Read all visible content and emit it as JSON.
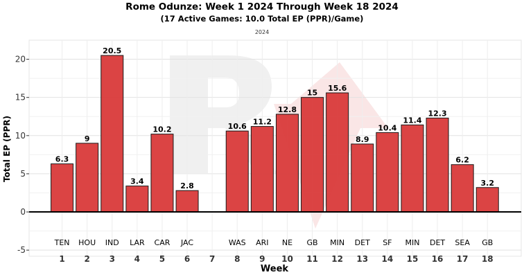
{
  "chart_data": {
    "type": "bar",
    "title": "Rome Odunze: Week 1 2024 Through Week 18 2024",
    "subtitle": "(17 Active Games: 10.0 Total EP (PPR)/Game)",
    "facet_label": "2024",
    "xlabel": "Week",
    "ylabel": "Total EP (PPR)",
    "ylim": [
      -5,
      22
    ],
    "yticks": [
      -5,
      0,
      5,
      10,
      15,
      20
    ],
    "grid": true,
    "bar_color": "#d93a3a",
    "weeks": [
      "1",
      "2",
      "3",
      "4",
      "5",
      "6",
      "7",
      "8",
      "9",
      "10",
      "11",
      "12",
      "13",
      "14",
      "15",
      "16",
      "17",
      "18"
    ],
    "opponents": [
      "TEN",
      "HOU",
      "IND",
      "LAR",
      "CAR",
      "JAC",
      "",
      "WAS",
      "ARI",
      "NE",
      "GB",
      "MIN",
      "DET",
      "SF",
      "MIN",
      "DET",
      "SEA",
      "GB"
    ],
    "values": [
      6.3,
      9,
      20.5,
      3.4,
      10.2,
      2.8,
      null,
      10.6,
      11.2,
      12.8,
      15,
      15.6,
      8.9,
      10.4,
      11.4,
      12.3,
      6.2,
      3.2
    ],
    "value_labels": [
      "6.3",
      "9",
      "20.5",
      "3.4",
      "10.2",
      "2.8",
      "",
      "10.6",
      "11.2",
      "12.8",
      "15",
      "15.6",
      "8.9",
      "10.4",
      "11.4",
      "12.3",
      "6.2",
      "3.2"
    ]
  }
}
